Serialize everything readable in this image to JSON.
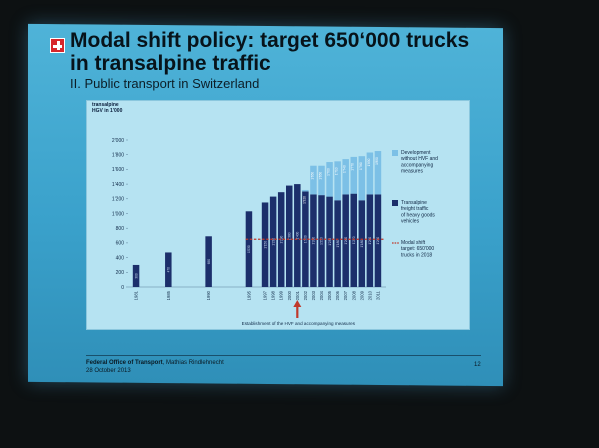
{
  "slide": {
    "title": "Modal shift policy: target 650‘000 trucks in transalpine traffic",
    "subtitle": "II. Public transport in Switzerland",
    "footer_org": "Federal Office of Transport",
    "footer_author": "Mathias Rindlehnecht",
    "footer_date": "28 October 2013",
    "page_number": "12"
  },
  "chart_data": {
    "type": "bar",
    "ylabel": "transalpine HGV in 1'000",
    "ylim": [
      0,
      2000
    ],
    "yticks": [
      0,
      200,
      400,
      600,
      800,
      1000,
      1200,
      1400,
      1600,
      1800,
      2000
    ],
    "categories": [
      "1981",
      "1985",
      "1990",
      "1995",
      "1997",
      "1998",
      "1999",
      "2000",
      "2001",
      "2002",
      "2003",
      "2004",
      "2005",
      "2006",
      "2007",
      "2008",
      "2009",
      "2010",
      "2011"
    ],
    "series": [
      {
        "name": "Transalpine freight traffic of heavy goods vehicles",
        "color": "#1c2f6b",
        "values": [
          300,
          470,
          690,
          1030,
          1150,
          1230,
          1290,
          1380,
          1400,
          1300,
          1260,
          1250,
          1230,
          1180,
          1260,
          1270,
          1180,
          1260,
          1260
        ]
      },
      {
        "name": "Development without HVF and accompanying measures",
        "color": "#7cc0e6",
        "values": [
          0,
          0,
          0,
          0,
          0,
          0,
          0,
          0,
          0,
          20,
          390,
          400,
          470,
          530,
          480,
          500,
          600,
          570,
          590
        ]
      }
    ],
    "reference_line": {
      "name": "Modal shift target: 650'000 trucks in 2018",
      "value": 650,
      "color": "#c0392b",
      "from": "1995"
    },
    "annotation": "Establishment of the HVF and accompanying measures",
    "annotation_at": "2001",
    "legend": [
      {
        "label": "Development without HVF and accompanying measures",
        "color": "#7cc0e6",
        "kind": "box"
      },
      {
        "label": "Transalpine freight traffic of heavy goods vehicles",
        "color": "#1c2f6b",
        "kind": "box"
      },
      {
        "label": "Modal shift target: 650'000 trucks in 2018",
        "color": "#c0392b",
        "kind": "dash"
      }
    ],
    "legend_position": "right"
  }
}
